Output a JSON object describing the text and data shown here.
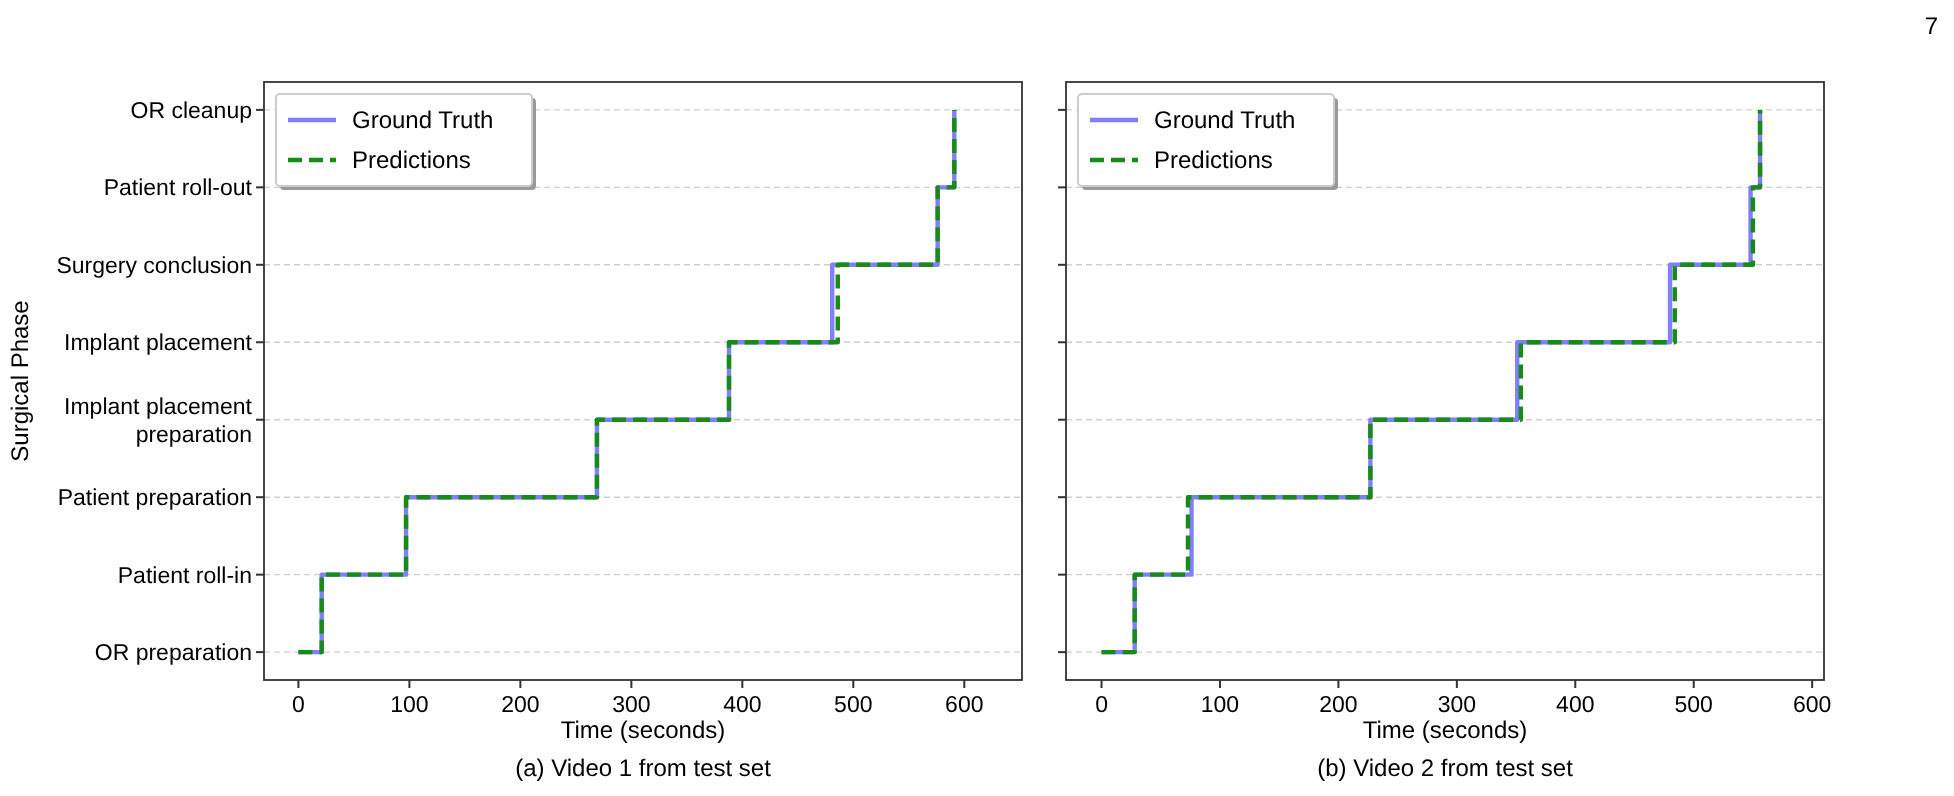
{
  "chart_data": [
    {
      "type": "step",
      "orientation": "horizontal",
      "xlabel": "Time (seconds)",
      "ylabel": "Surgical Phase",
      "annotations": [
        "(a) Video 1 from test set"
      ],
      "xlim": [
        -31,
        652
      ],
      "xticks": [
        0,
        100,
        200,
        300,
        400,
        500,
        600
      ],
      "categories": [
        "OR cleanup",
        "Patient roll-out",
        "Surgery conclusion",
        "Implant placement",
        "Implant placement\npreparation",
        "Patient preparation",
        "Patient roll-in",
        "OR preparation"
      ],
      "grid": "y",
      "legend": "top left",
      "marker": "none",
      "series": [
        {
          "name": "Ground Truth",
          "color": "#8080ff",
          "line_style": "solid",
          "values": [
            591,
            576,
            481,
            388,
            269,
            97,
            21,
            0
          ]
        },
        {
          "name": "Predictions",
          "color": "#178a17",
          "line_style": "dashed",
          "values": [
            591,
            576,
            486,
            388,
            269,
            97,
            21,
            0
          ]
        }
      ]
    },
    {
      "type": "step",
      "orientation": "horizontal",
      "xlabel": "Time (seconds)",
      "annotations": [
        "(b) Video 2 from test set",
        "7"
      ],
      "xlim": [
        -30,
        610
      ],
      "xticks": [
        0,
        100,
        200,
        300,
        400,
        500,
        600
      ],
      "categories": [
        null,
        null,
        null,
        null,
        null,
        null,
        null,
        null
      ],
      "grid": "y",
      "legend": "top left",
      "marker": "none",
      "series": [
        {
          "name": "Ground Truth",
          "color": "#8080ff",
          "line_style": "solid",
          "values": [
            556,
            548,
            480,
            351,
            227,
            76,
            28,
            0
          ]
        },
        {
          "name": "Predictions",
          "color": "#178a17",
          "line_style": "dashed",
          "values": [
            556,
            550,
            484,
            354,
            227,
            73,
            28,
            0
          ]
        }
      ]
    }
  ]
}
